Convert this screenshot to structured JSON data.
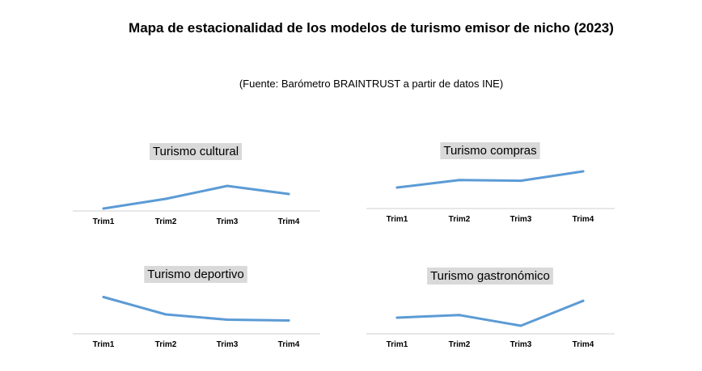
{
  "header": {
    "title": "Mapa de estacionalidad de los modelos de turismo emisor de nicho (2023)",
    "source": "(Fuente: Barómetro BRAINTRUST a partir de datos INE)"
  },
  "style": {
    "line_color": "#5b9bd5",
    "title_bg": "#d9d9d9",
    "axis_color": "#cfcfcf"
  },
  "chart_data": [
    {
      "type": "line",
      "title": "Turismo cultural",
      "categories": [
        "Trim1",
        "Trim2",
        "Trim3",
        "Trim4"
      ],
      "values": [
        0.05,
        0.35,
        0.75,
        0.5
      ],
      "ylim": [
        0,
        1
      ],
      "grid": false
    },
    {
      "type": "line",
      "title": "Turismo compras",
      "categories": [
        "Trim1",
        "Trim2",
        "Trim3",
        "Trim4"
      ],
      "values": [
        0.45,
        0.68,
        0.66,
        0.95
      ],
      "ylim": [
        0,
        1
      ],
      "grid": false
    },
    {
      "type": "line",
      "title": "Turismo deportivo",
      "categories": [
        "Trim1",
        "Trim2",
        "Trim3",
        "Trim4"
      ],
      "values": [
        0.85,
        0.42,
        0.29,
        0.27
      ],
      "ylim": [
        0,
        1
      ],
      "grid": false
    },
    {
      "type": "line",
      "title": "Turismo gastronómico",
      "categories": [
        "Trim1",
        "Trim2",
        "Trim3",
        "Trim4"
      ],
      "values": [
        0.3,
        0.38,
        0.05,
        0.82
      ],
      "ylim": [
        0,
        1
      ],
      "grid": false
    }
  ]
}
